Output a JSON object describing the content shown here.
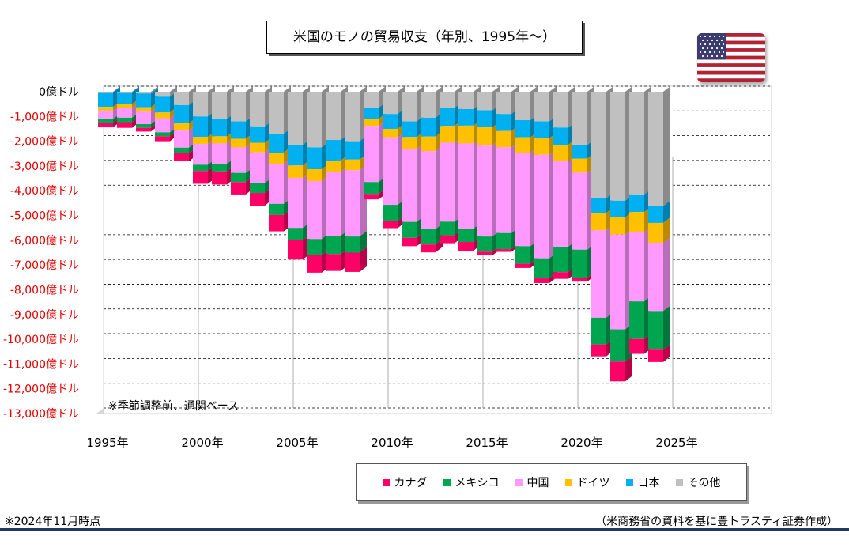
{
  "title": "米国のモノの貿易収支（年別、1995年～）",
  "note": "※季節調整前、通関ベース",
  "footnote_left": "※2024年11月時点",
  "footnote_right": "（米商務省の資料を基に豊トラスティ証券作成）",
  "colors": {
    "canada": "#ff0066",
    "mexico": "#00a550",
    "china": "#ff99ff",
    "germany": "#ffc000",
    "japan": "#00b0f0",
    "other": "#c0c0c0"
  },
  "chart_data": {
    "type": "bar",
    "stacked": true,
    "ylim": [
      -13000,
      0
    ],
    "y_ticks": [
      0,
      -1000,
      -2000,
      -3000,
      -4000,
      -5000,
      -6000,
      -7000,
      -8000,
      -9000,
      -10000,
      -11000,
      -12000,
      -13000
    ],
    "y_tick_labels": [
      "0億ドル",
      "-1,000億ドル",
      "-2,000億ドル",
      "-3,000億ドル",
      "-4,000億ドル",
      "-5,000億ドル",
      "-6,000億ドル",
      "-7,000億ドル",
      "-8,000億ドル",
      "-9,000億ドル",
      "-10,000億ドル",
      "-11,000億ドル",
      "-12,000億ドル",
      "-13,000億ドル"
    ],
    "x_tick_labels": [
      "1995年",
      "2000年",
      "2005年",
      "2010年",
      "2015年",
      "2020年",
      "2025年"
    ],
    "x_tick_years": [
      1995,
      2000,
      2005,
      2010,
      2015,
      2020,
      2025
    ],
    "years": [
      1995,
      1996,
      1997,
      1998,
      1999,
      2000,
      2001,
      2002,
      2003,
      2004,
      2005,
      2006,
      2007,
      2008,
      2009,
      2010,
      2011,
      2012,
      2013,
      2014,
      2015,
      2016,
      2017,
      2018,
      2019,
      2020,
      2021,
      2022,
      2023,
      2024
    ],
    "series": [
      {
        "name": "その他",
        "key": "other",
        "values": [
          -20,
          -20,
          -70,
          -200,
          -540,
          -1000,
          -1100,
          -1200,
          -1400,
          -1700,
          -2150,
          -2250,
          -1950,
          -2000,
          -650,
          -900,
          -1200,
          -1050,
          -650,
          -700,
          -750,
          -900,
          -1150,
          -1200,
          -1450,
          -2150,
          -4300,
          -4400,
          -4150,
          -4620
        ]
      },
      {
        "name": "日本",
        "key": "japan",
        "values": [
          -590,
          -480,
          -560,
          -640,
          -740,
          -820,
          -700,
          -700,
          -660,
          -760,
          -830,
          -880,
          -830,
          -740,
          -450,
          -600,
          -630,
          -760,
          -730,
          -670,
          -690,
          -690,
          -690,
          -680,
          -690,
          -550,
          -600,
          -670,
          -710,
          -680
        ]
      },
      {
        "name": "ドイツ",
        "key": "germany",
        "values": [
          -150,
          -150,
          -180,
          -230,
          -290,
          -290,
          -290,
          -350,
          -390,
          -450,
          -500,
          -480,
          -450,
          -430,
          -280,
          -340,
          -480,
          -590,
          -680,
          -720,
          -740,
          -650,
          -640,
          -670,
          -670,
          -570,
          -700,
          -700,
          -820,
          -800
        ]
      },
      {
        "name": "中国",
        "key": "china",
        "values": [
          -340,
          -400,
          -500,
          -570,
          -690,
          -840,
          -830,
          -1030,
          -1240,
          -1620,
          -2020,
          -2340,
          -2590,
          -2680,
          -2270,
          -2730,
          -2950,
          -3150,
          -3190,
          -3440,
          -3670,
          -3470,
          -3760,
          -4180,
          -3450,
          -3110,
          -3530,
          -3830,
          -2790,
          -2760
        ]
      },
      {
        "name": "メキシコ",
        "key": "mexico",
        "values": [
          -160,
          -180,
          -150,
          -160,
          -230,
          -250,
          -300,
          -370,
          -400,
          -450,
          -500,
          -640,
          -740,
          -650,
          -480,
          -660,
          -640,
          -620,
          -550,
          -540,
          -610,
          -650,
          -710,
          -810,
          -1030,
          -1130,
          -1080,
          -1300,
          -1520,
          -1560
        ]
      },
      {
        "name": "カナダ",
        "key": "canada",
        "values": [
          -180,
          -230,
          -150,
          -200,
          -320,
          -520,
          -530,
          -500,
          -510,
          -660,
          -780,
          -720,
          -680,
          -780,
          -220,
          -280,
          -340,
          -320,
          -320,
          -350,
          -150,
          -110,
          -170,
          -190,
          -270,
          -160,
          -480,
          -800,
          -600,
          -500
        ]
      }
    ],
    "legend_order": [
      "カナダ",
      "メキシコ",
      "中国",
      "ドイツ",
      "日本",
      "その他"
    ],
    "legend_position": "bottom",
    "grid": true
  }
}
